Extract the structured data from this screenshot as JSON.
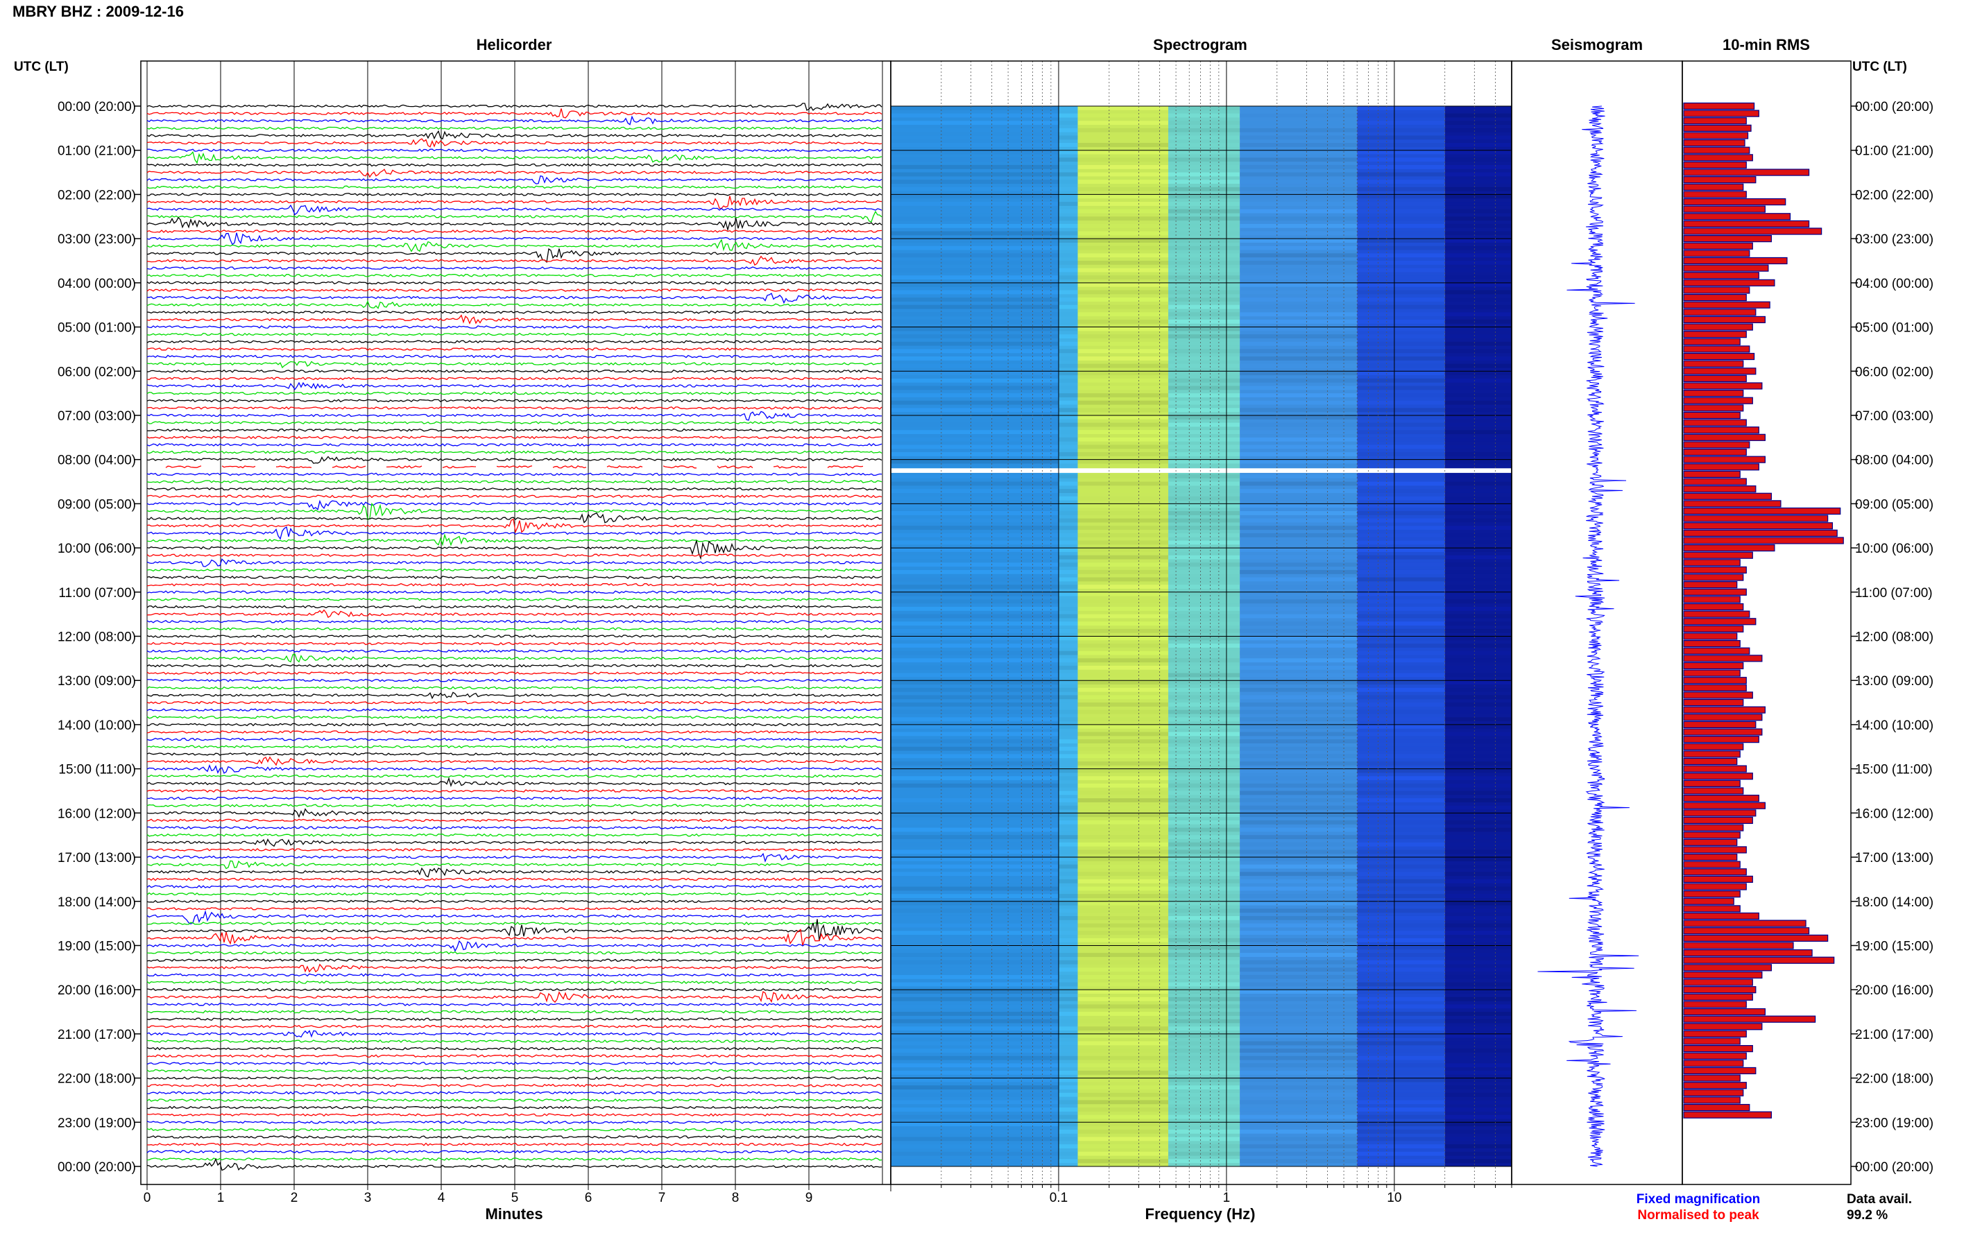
{
  "header": {
    "station": "MBRY BHZ : 2009-12-16",
    "left_axis_title": "UTC (LT)",
    "right_axis_title": "UTC (LT)"
  },
  "panels": {
    "helicorder": "Helicorder",
    "spectrogram": "Spectrogram",
    "seismogram": "Seismogram",
    "rms": "10-min RMS"
  },
  "footer": {
    "minutes_label": "Minutes",
    "frequency_label": "Frequency (Hz)",
    "legend_fixed": "Fixed magnification",
    "legend_normalised": "Normalised to peak",
    "data_avail_label": "Data avail.",
    "data_avail_value": "99.2 %"
  },
  "colors": {
    "trace_cycle": [
      "#000000",
      "#ff0000",
      "#0000ff",
      "#00dd00"
    ],
    "fixed_magnification": "#0000ff",
    "normalised_to_peak": "#ff0000",
    "rms_bar": "#dd1111",
    "seismogram": "#0000ff"
  },
  "chart_data": [
    {
      "type": "line",
      "panel": "Helicorder",
      "xlabel": "Minutes",
      "x_ticks": [
        "0",
        "1",
        "2",
        "3",
        "4",
        "5",
        "6",
        "7",
        "8",
        "9"
      ],
      "xlim": [
        0,
        10
      ],
      "rows_per_hour": 6,
      "row_minutes": 10,
      "gap_rows": [
        49
      ],
      "y_tick_labels": [
        "00:00 (20:00)",
        "01:00 (21:00)",
        "02:00 (22:00)",
        "03:00 (23:00)",
        "04:00 (00:00)",
        "05:00 (01:00)",
        "06:00 (02:00)",
        "07:00 (03:00)",
        "08:00 (04:00)",
        "09:00 (05:00)",
        "10:00 (06:00)",
        "11:00 (07:00)",
        "12:00 (08:00)",
        "13:00 (09:00)",
        "14:00 (10:00)",
        "15:00 (11:00)",
        "16:00 (12:00)",
        "17:00 (13:00)",
        "18:00 (14:00)",
        "19:00 (15:00)",
        "20:00 (16:00)",
        "21:00 (17:00)",
        "22:00 (18:00)",
        "23:00 (19:00)",
        "00:00 (20:00)"
      ],
      "events": [
        {
          "row": 0,
          "minute": 9.0,
          "amp": 1.4
        },
        {
          "row": 1,
          "minute": 5.6,
          "amp": 1.6
        },
        {
          "row": 2,
          "minute": 6.6,
          "amp": 1.5
        },
        {
          "row": 4,
          "minute": 3.9,
          "amp": 1.6
        },
        {
          "row": 5,
          "minute": 3.7,
          "amp": 1.7
        },
        {
          "row": 7,
          "minute": 0.6,
          "amp": 2.2
        },
        {
          "row": 7,
          "minute": 6.9,
          "amp": 1.6
        },
        {
          "row": 9,
          "minute": 3.0,
          "amp": 1.4
        },
        {
          "row": 10,
          "minute": 5.3,
          "amp": 1.3
        },
        {
          "row": 13,
          "minute": 7.8,
          "amp": 2.6
        },
        {
          "row": 14,
          "minute": 2.0,
          "amp": 1.6
        },
        {
          "row": 15,
          "minute": 9.8,
          "amp": 2.0
        },
        {
          "row": 16,
          "minute": 0.4,
          "amp": 2.5
        },
        {
          "row": 16,
          "minute": 7.9,
          "amp": 2.2
        },
        {
          "row": 18,
          "minute": 1.1,
          "amp": 3.0
        },
        {
          "row": 19,
          "minute": 3.6,
          "amp": 2.3
        },
        {
          "row": 19,
          "minute": 7.8,
          "amp": 2.0
        },
        {
          "row": 20,
          "minute": 5.4,
          "amp": 3.2
        },
        {
          "row": 21,
          "minute": 8.3,
          "amp": 1.6
        },
        {
          "row": 26,
          "minute": 8.5,
          "amp": 2.6
        },
        {
          "row": 27,
          "minute": 3.0,
          "amp": 1.6
        },
        {
          "row": 29,
          "minute": 4.3,
          "amp": 1.5
        },
        {
          "row": 35,
          "minute": 1.9,
          "amp": 1.6
        },
        {
          "row": 38,
          "minute": 2.0,
          "amp": 1.4
        },
        {
          "row": 42,
          "minute": 8.2,
          "amp": 1.8
        },
        {
          "row": 48,
          "minute": 2.3,
          "amp": 1.5
        },
        {
          "row": 54,
          "minute": 2.3,
          "amp": 2.0
        },
        {
          "row": 55,
          "minute": 3.0,
          "amp": 3.0
        },
        {
          "row": 56,
          "minute": 6.0,
          "amp": 2.4
        },
        {
          "row": 57,
          "minute": 5.0,
          "amp": 2.6
        },
        {
          "row": 58,
          "minute": 1.8,
          "amp": 3.0
        },
        {
          "row": 59,
          "minute": 4.0,
          "amp": 2.6
        },
        {
          "row": 60,
          "minute": 7.5,
          "amp": 4.0
        },
        {
          "row": 62,
          "minute": 0.8,
          "amp": 1.8
        },
        {
          "row": 69,
          "minute": 2.4,
          "amp": 1.4
        },
        {
          "row": 75,
          "minute": 2.0,
          "amp": 1.6
        },
        {
          "row": 80,
          "minute": 3.9,
          "amp": 1.6
        },
        {
          "row": 89,
          "minute": 1.6,
          "amp": 2.3
        },
        {
          "row": 90,
          "minute": 0.9,
          "amp": 2.0
        },
        {
          "row": 92,
          "minute": 4.1,
          "amp": 1.6
        },
        {
          "row": 96,
          "minute": 2.1,
          "amp": 1.5
        },
        {
          "row": 100,
          "minute": 1.6,
          "amp": 1.8
        },
        {
          "row": 102,
          "minute": 8.4,
          "amp": 1.4
        },
        {
          "row": 103,
          "minute": 1.1,
          "amp": 1.5
        },
        {
          "row": 104,
          "minute": 3.8,
          "amp": 1.8
        },
        {
          "row": 110,
          "minute": 0.6,
          "amp": 2.6
        },
        {
          "row": 112,
          "minute": 5.0,
          "amp": 2.6
        },
        {
          "row": 112,
          "minute": 9.1,
          "amp": 4.0
        },
        {
          "row": 113,
          "minute": 1.0,
          "amp": 2.4
        },
        {
          "row": 113,
          "minute": 8.8,
          "amp": 3.6
        },
        {
          "row": 114,
          "minute": 4.2,
          "amp": 1.7
        },
        {
          "row": 117,
          "minute": 2.2,
          "amp": 1.5
        },
        {
          "row": 121,
          "minute": 5.4,
          "amp": 3.0
        },
        {
          "row": 121,
          "minute": 8.4,
          "amp": 2.0
        },
        {
          "row": 126,
          "minute": 2.0,
          "amp": 1.6
        },
        {
          "row": 144,
          "minute": 0.9,
          "amp": 2.8
        }
      ]
    },
    {
      "type": "heatmap",
      "panel": "Spectrogram",
      "xlabel": "Frequency (Hz)",
      "x_scale": "log",
      "xlim": [
        0.01,
        50
      ],
      "x_ticks": [
        "0.1",
        "1",
        "10"
      ],
      "color_bands": [
        {
          "from_hz": 0.01,
          "to_hz": 0.1,
          "color": "#2b8fe0"
        },
        {
          "from_hz": 0.1,
          "to_hz": 0.13,
          "color": "#3fb0e8"
        },
        {
          "from_hz": 0.13,
          "to_hz": 0.45,
          "color": "#c8e85a"
        },
        {
          "from_hz": 0.45,
          "to_hz": 1.2,
          "color": "#6fd2c8"
        },
        {
          "from_hz": 1.2,
          "to_hz": 6,
          "color": "#3d8fe0"
        },
        {
          "from_hz": 6,
          "to_hz": 20,
          "color": "#1f4fd8"
        },
        {
          "from_hz": 20,
          "to_hz": 50,
          "color": "#0a1a9a"
        }
      ]
    },
    {
      "type": "line",
      "panel": "Seismogram",
      "note_hours_with_large_amplitude": [
        4,
        10,
        19,
        20,
        21,
        22
      ]
    },
    {
      "type": "bar",
      "panel": "10-min RMS",
      "unit": "normalised",
      "values": [
        0.45,
        0.48,
        0.4,
        0.43,
        0.41,
        0.39,
        0.42,
        0.44,
        0.4,
        0.8,
        0.46,
        0.38,
        0.4,
        0.65,
        0.52,
        0.68,
        0.8,
        0.88,
        0.56,
        0.44,
        0.42,
        0.66,
        0.54,
        0.48,
        0.58,
        0.42,
        0.4,
        0.55,
        0.46,
        0.52,
        0.44,
        0.4,
        0.36,
        0.42,
        0.45,
        0.38,
        0.46,
        0.4,
        0.5,
        0.38,
        0.44,
        0.38,
        0.36,
        0.4,
        0.48,
        0.52,
        0.42,
        0.4,
        0.52,
        0.48,
        0.36,
        0.4,
        0.46,
        0.56,
        0.62,
        1.0,
        0.92,
        0.95,
        0.98,
        1.02,
        0.58,
        0.44,
        0.36,
        0.4,
        0.38,
        0.34,
        0.4,
        0.36,
        0.38,
        0.42,
        0.46,
        0.38,
        0.34,
        0.36,
        0.42,
        0.5,
        0.38,
        0.36,
        0.4,
        0.4,
        0.44,
        0.38,
        0.52,
        0.5,
        0.46,
        0.5,
        0.48,
        0.38,
        0.36,
        0.34,
        0.4,
        0.44,
        0.36,
        0.38,
        0.48,
        0.52,
        0.46,
        0.44,
        0.38,
        0.36,
        0.34,
        0.4,
        0.34,
        0.36,
        0.4,
        0.44,
        0.4,
        0.36,
        0.32,
        0.36,
        0.48,
        0.78,
        0.8,
        0.92,
        0.7,
        0.82,
        0.96,
        0.56,
        0.5,
        0.44,
        0.46,
        0.44,
        0.4,
        0.52,
        0.84,
        0.5,
        0.4,
        0.36,
        0.44,
        0.4,
        0.38,
        0.46,
        0.36,
        0.4,
        0.38,
        0.36,
        0.42,
        0.56
      ]
    }
  ]
}
